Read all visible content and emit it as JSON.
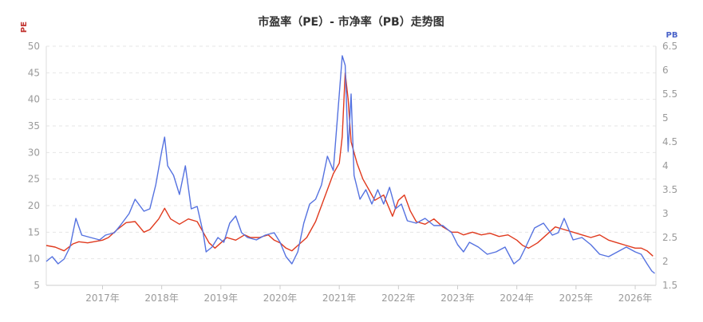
{
  "chart_data": {
    "type": "line",
    "title": "市盈率（PE）- 市净率（PB）走势图",
    "y_left_label": "PE",
    "y_right_label": "PB",
    "y_left_ticks": [
      5,
      10,
      15,
      20,
      25,
      30,
      35,
      40,
      45,
      50
    ],
    "y_right_ticks": [
      1.5,
      2,
      2.5,
      3,
      3.5,
      4,
      4.5,
      5,
      5.5,
      6,
      6.5
    ],
    "y_left_ticklabels": [
      "5",
      "10",
      "15",
      "20",
      "25",
      "30",
      "35",
      "40",
      "45",
      "50"
    ],
    "y_right_ticklabels": [
      "1.5",
      "2",
      "2.5",
      "3",
      "3.5",
      "4",
      "4.5",
      "5",
      "5.5",
      "6",
      "6.5"
    ],
    "y_left_range": [
      5,
      50
    ],
    "y_right_range": [
      1.5,
      6.5
    ],
    "x_range": [
      2016.05,
      2026.35
    ],
    "x_ticks": [
      2017,
      2018,
      2019,
      2020,
      2021,
      2022,
      2023,
      2024,
      2025,
      2026
    ],
    "x_ticklabels": [
      "2017年",
      "2018年",
      "2019年",
      "2020年",
      "2021年",
      "2022年",
      "2023年",
      "2024年",
      "2025年",
      "2026年"
    ],
    "grid": true,
    "colors": {
      "pe": "#e03a1e",
      "pb": "#5572e0",
      "pe_label": "#c23531",
      "pb_label": "#4a63c9"
    },
    "series": [
      {
        "name": "PE",
        "axis": "left",
        "x": [
          2016.05,
          2016.2,
          2016.35,
          2016.5,
          2016.6,
          2016.75,
          2016.9,
          2017.0,
          2017.1,
          2017.25,
          2017.4,
          2017.55,
          2017.7,
          2017.8,
          2017.95,
          2018.05,
          2018.15,
          2018.3,
          2018.45,
          2018.6,
          2018.7,
          2018.8,
          2018.9,
          2019.0,
          2019.1,
          2019.25,
          2019.4,
          2019.5,
          2019.65,
          2019.8,
          2019.9,
          2020.0,
          2020.1,
          2020.2,
          2020.3,
          2020.45,
          2020.6,
          2020.7,
          2020.8,
          2020.9,
          2021.0,
          2021.05,
          2021.1,
          2021.15,
          2021.2,
          2021.3,
          2021.4,
          2021.5,
          2021.6,
          2021.75,
          2021.9,
          2022.0,
          2022.1,
          2022.2,
          2022.3,
          2022.45,
          2022.6,
          2022.75,
          2022.9,
          2023.0,
          2023.1,
          2023.25,
          2023.4,
          2023.55,
          2023.7,
          2023.85,
          2024.0,
          2024.1,
          2024.2,
          2024.35,
          2024.5,
          2024.65,
          2024.8,
          2024.95,
          2025.1,
          2025.25,
          2025.4,
          2025.55,
          2025.7,
          2025.85,
          2026.0,
          2026.1,
          2026.2,
          2026.3
        ],
        "y": [
          12.5,
          12.2,
          11.5,
          12.8,
          13.2,
          13.0,
          13.3,
          13.5,
          14.0,
          15.5,
          16.8,
          17.0,
          15.0,
          15.5,
          17.5,
          19.5,
          17.5,
          16.5,
          17.5,
          17.0,
          15.0,
          13.0,
          12.0,
          13.0,
          14.0,
          13.5,
          14.5,
          14.0,
          14.0,
          14.5,
          13.5,
          13.0,
          12.0,
          11.5,
          12.5,
          14.0,
          17.0,
          20.0,
          23.0,
          26.0,
          28.0,
          33.0,
          45.0,
          40.0,
          32.0,
          28.0,
          25.0,
          23.0,
          21.0,
          22.0,
          18.0,
          21.0,
          22.0,
          19.0,
          17.0,
          16.5,
          17.5,
          16.0,
          15.0,
          15.0,
          14.5,
          15.0,
          14.5,
          14.8,
          14.2,
          14.5,
          13.5,
          12.5,
          12.0,
          13.0,
          14.5,
          16.0,
          15.5,
          15.0,
          14.5,
          14.0,
          14.5,
          13.5,
          13.0,
          12.5,
          12.0,
          12.0,
          11.5,
          10.5
        ]
      },
      {
        "name": "PB",
        "axis": "right",
        "x": [
          2016.05,
          2016.15,
          2016.25,
          2016.35,
          2016.45,
          2016.5,
          2016.55,
          2016.65,
          2016.8,
          2016.95,
          2017.05,
          2017.2,
          2017.3,
          2017.45,
          2017.55,
          2017.7,
          2017.8,
          2017.9,
          2018.0,
          2018.05,
          2018.1,
          2018.2,
          2018.3,
          2018.4,
          2018.5,
          2018.6,
          2018.7,
          2018.75,
          2018.85,
          2018.95,
          2019.05,
          2019.15,
          2019.25,
          2019.35,
          2019.45,
          2019.6,
          2019.75,
          2019.9,
          2020.0,
          2020.1,
          2020.2,
          2020.3,
          2020.4,
          2020.5,
          2020.6,
          2020.7,
          2020.8,
          2020.9,
          2021.0,
          2021.05,
          2021.1,
          2021.15,
          2021.2,
          2021.25,
          2021.35,
          2021.45,
          2021.55,
          2021.65,
          2021.75,
          2021.85,
          2021.95,
          2022.05,
          2022.15,
          2022.3,
          2022.45,
          2022.6,
          2022.75,
          2022.9,
          2023.0,
          2023.1,
          2023.2,
          2023.35,
          2023.5,
          2023.65,
          2023.8,
          2023.95,
          2024.05,
          2024.15,
          2024.3,
          2024.45,
          2024.6,
          2024.7,
          2024.8,
          2024.95,
          2025.1,
          2025.25,
          2025.4,
          2025.55,
          2025.7,
          2025.85,
          2026.0,
          2026.1,
          2026.2,
          2026.28,
          2026.33
        ],
        "y": [
          2.0,
          2.1,
          1.95,
          2.05,
          2.3,
          2.6,
          2.9,
          2.55,
          2.5,
          2.45,
          2.55,
          2.6,
          2.75,
          3.0,
          3.3,
          3.05,
          3.1,
          3.6,
          4.3,
          4.6,
          4.0,
          3.8,
          3.4,
          4.0,
          3.1,
          3.15,
          2.6,
          2.2,
          2.3,
          2.5,
          2.4,
          2.8,
          2.95,
          2.6,
          2.5,
          2.45,
          2.55,
          2.6,
          2.4,
          2.1,
          1.95,
          2.2,
          2.8,
          3.2,
          3.3,
          3.6,
          4.2,
          3.9,
          5.5,
          6.3,
          6.1,
          4.3,
          5.5,
          3.8,
          3.3,
          3.5,
          3.2,
          3.5,
          3.2,
          3.55,
          3.1,
          3.2,
          2.85,
          2.8,
          2.9,
          2.75,
          2.75,
          2.6,
          2.35,
          2.2,
          2.4,
          2.3,
          2.15,
          2.2,
          2.3,
          1.95,
          2.05,
          2.3,
          2.7,
          2.8,
          2.55,
          2.6,
          2.9,
          2.45,
          2.5,
          2.35,
          2.15,
          2.1,
          2.2,
          2.3,
          2.2,
          2.15,
          1.95,
          1.8,
          1.75
        ]
      }
    ]
  }
}
